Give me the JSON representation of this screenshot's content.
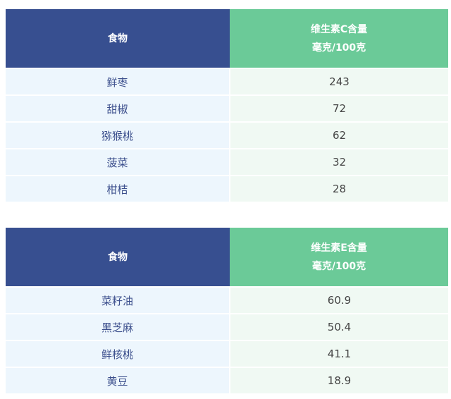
{
  "tables": [
    {
      "header": {
        "food": "食物",
        "value_line1": "维生素C含量",
        "value_line2": "毫克/100克"
      },
      "rows": [
        {
          "food": "鲜枣",
          "value": "243"
        },
        {
          "food": "甜椒",
          "value": "72"
        },
        {
          "food": "猕猴桃",
          "value": "62"
        },
        {
          "food": "菠菜",
          "value": "32"
        },
        {
          "food": "柑桔",
          "value": "28"
        }
      ]
    },
    {
      "header": {
        "food": "食物",
        "value_line1": "维生素E含量",
        "value_line2": "毫克/100克"
      },
      "rows": [
        {
          "food": "菜籽油",
          "value": "60.9"
        },
        {
          "food": "黑芝麻",
          "value": "50.4"
        },
        {
          "food": "鲜核桃",
          "value": "41.1"
        },
        {
          "food": "黄豆",
          "value": "18.9"
        }
      ]
    }
  ],
  "colors": {
    "header_left": "#374f90",
    "header_right": "#6bca98",
    "row_left": "#edf6fd",
    "row_right": "#f0f9f3"
  }
}
